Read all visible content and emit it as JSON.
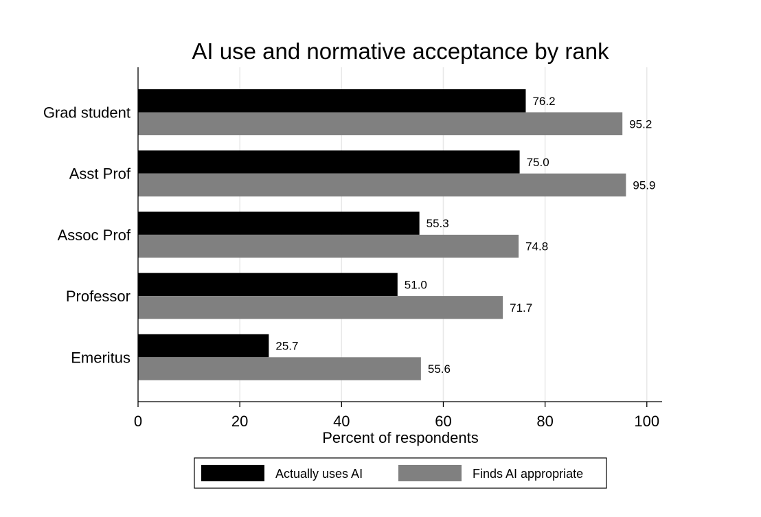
{
  "chart_data": {
    "type": "bar",
    "orientation": "horizontal",
    "title": "AI use and normative acceptance by rank",
    "xlabel": "Percent of respondents",
    "ylabel": "",
    "xlim": [
      0,
      103
    ],
    "xticks": [
      "0",
      "20",
      "40",
      "60",
      "80",
      "100"
    ],
    "grid": true,
    "legend_position": "bottom",
    "categories": [
      "Grad student",
      "Asst Prof",
      "Assoc Prof",
      "Professor",
      "Emeritus"
    ],
    "series": [
      {
        "name": "Actually uses AI",
        "color": "#000000",
        "values": [
          76.2,
          75.0,
          55.3,
          51.0,
          25.7
        ],
        "labels": [
          "76.2",
          "75.0",
          "55.3",
          "51.0",
          "25.7"
        ]
      },
      {
        "name": "Finds AI appropriate",
        "color": "#808080",
        "values": [
          95.2,
          95.9,
          74.8,
          71.7,
          55.6
        ],
        "labels": [
          "95.2",
          "95.9",
          "74.8",
          "71.7",
          "55.6"
        ]
      }
    ]
  }
}
